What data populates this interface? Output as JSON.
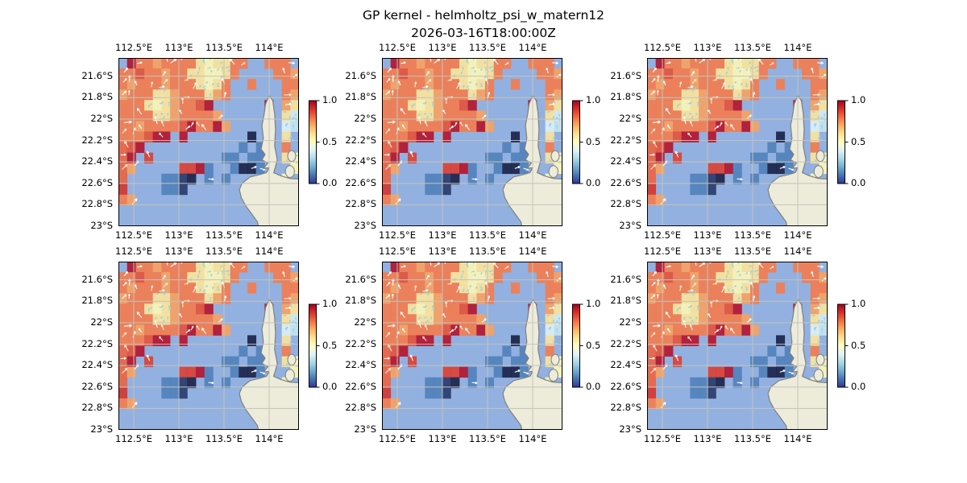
{
  "title": {
    "line1": "GP kernel - helmholtz_psi_w_matern12",
    "line2": "2026-03-16T18:00:00Z"
  },
  "chart_data": {
    "type": "heatmap",
    "title": "GP kernel - helmholtz_psi_w_matern12",
    "subtitle": "2026-03-16T18:00:00Z",
    "panels": {
      "rows": 2,
      "cols": 3,
      "identical": true
    },
    "lon_range": [
      112.33,
      114.33
    ],
    "lat_range": [
      21.43,
      23.0
    ],
    "lon_ticks": {
      "values": [
        112.5,
        113.0,
        113.5,
        114.0
      ],
      "labels": [
        "112.5°E",
        "113°E",
        "113.5°E",
        "114°E"
      ]
    },
    "lat_ticks": {
      "values": [
        21.6,
        21.8,
        22.0,
        22.2,
        22.4,
        22.6,
        22.8,
        23.0
      ],
      "labels": [
        "21.6°S",
        "21.8°S",
        "22°S",
        "22.2°S",
        "22.4°S",
        "22.6°S",
        "22.8°S",
        "23°S"
      ]
    },
    "colorbar": {
      "range": [
        0,
        1
      ],
      "tick_values": [
        1.0,
        0.5,
        0.0
      ],
      "tick_labels": [
        "1.0",
        "0.5",
        "0.0"
      ],
      "colormap": "RdYlBu_r",
      "stops": [
        [
          0.0,
          "#313695"
        ],
        [
          0.1,
          "#4575b4"
        ],
        [
          0.2,
          "#74add1"
        ],
        [
          0.3,
          "#abd9e9"
        ],
        [
          0.4,
          "#e0f3f8"
        ],
        [
          0.5,
          "#ffffbf"
        ],
        [
          0.6,
          "#fee090"
        ],
        [
          0.7,
          "#fdae61"
        ],
        [
          0.8,
          "#f46d43"
        ],
        [
          0.9,
          "#d73027"
        ],
        [
          1.0,
          "#a50026"
        ]
      ]
    },
    "grid": {
      "nx": 21,
      "ny": 16,
      "cell_alpha": 0.88,
      "values": [
        [
          null,
          0.97,
          0.78,
          0.78,
          0.72,
          0.78,
          0.78,
          0.78,
          0.78,
          0.58,
          0.52,
          0.58,
          0.58,
          0.78,
          0.78,
          null,
          null,
          0.78,
          0.78,
          0.78,
          null
        ],
        [
          0.78,
          0.78,
          0.85,
          0.78,
          0.78,
          0.72,
          0.78,
          0.78,
          0.58,
          0.58,
          0.52,
          0.52,
          0.58,
          0.78,
          null,
          null,
          null,
          null,
          0.78,
          0.78,
          0.72
        ],
        [
          0.78,
          0.72,
          0.78,
          0.78,
          0.78,
          0.72,
          0.78,
          0.78,
          0.78,
          0.58,
          0.52,
          0.58,
          0.78,
          null,
          null,
          0.78,
          null,
          null,
          null,
          0.78,
          0.78
        ],
        [
          0.72,
          0.78,
          0.78,
          0.78,
          0.58,
          0.58,
          0.72,
          0.78,
          0.78,
          0.78,
          0.58,
          0.72,
          0.78,
          null,
          null,
          null,
          null,
          null,
          null,
          0.78,
          0.72
        ],
        [
          0.78,
          0.78,
          0.78,
          0.58,
          0.52,
          0.58,
          0.72,
          0.78,
          0.78,
          0.85,
          0.97,
          null,
          null,
          null,
          null,
          null,
          null,
          0.97,
          null,
          0.72,
          0.58
        ],
        [
          0.78,
          0.78,
          0.78,
          0.78,
          0.58,
          0.58,
          0.72,
          0.78,
          0.78,
          0.78,
          0.78,
          0.72,
          null,
          null,
          null,
          null,
          null,
          0.97,
          null,
          0.58,
          0.38
        ],
        [
          0.78,
          0.78,
          0.72,
          0.78,
          0.78,
          0.78,
          0.78,
          0.85,
          0.97,
          0.78,
          0.78,
          0.97,
          0.72,
          null,
          null,
          null,
          null,
          null,
          null,
          0.4,
          0.35
        ],
        [
          0.78,
          0.78,
          0.78,
          0.85,
          0.97,
          0.97,
          null,
          0.97,
          null,
          null,
          null,
          null,
          null,
          null,
          null,
          0.02,
          null,
          null,
          null,
          0.58,
          null
        ],
        [
          0.82,
          0.85,
          0.97,
          null,
          null,
          null,
          null,
          null,
          null,
          null,
          null,
          null,
          null,
          null,
          0.12,
          null,
          0.12,
          null,
          null,
          0.78,
          null
        ],
        [
          0.82,
          0.97,
          null,
          0.88,
          null,
          null,
          null,
          null,
          null,
          null,
          null,
          null,
          0.12,
          0.12,
          null,
          0.12,
          0.12,
          null,
          null,
          0.58,
          0.52
        ],
        [
          0.82,
          0.72,
          null,
          null,
          null,
          null,
          null,
          0.88,
          0.88,
          0.97,
          0.12,
          null,
          null,
          0.12,
          0.02,
          0.02,
          0.12,
          null,
          null,
          null,
          0.52
        ],
        [
          0.82,
          null,
          null,
          null,
          null,
          0.12,
          0.12,
          0.05,
          0.02,
          null,
          0.12,
          null,
          0.12,
          null,
          null,
          null,
          null,
          null,
          null,
          0.52,
          null
        ],
        [
          0.9,
          null,
          null,
          null,
          null,
          0.12,
          0.12,
          0.05,
          null,
          null,
          null,
          null,
          null,
          null,
          null,
          null,
          null,
          null,
          null,
          null,
          null
        ],
        [
          0.78,
          0.72,
          null,
          null,
          null,
          null,
          null,
          null,
          null,
          null,
          null,
          null,
          null,
          null,
          null,
          null,
          null,
          null,
          null,
          null,
          null
        ],
        [
          null,
          null,
          null,
          null,
          null,
          null,
          null,
          null,
          null,
          null,
          null,
          null,
          null,
          null,
          null,
          null,
          null,
          null,
          null,
          null,
          null
        ],
        [
          null,
          null,
          null,
          null,
          null,
          null,
          null,
          null,
          null,
          null,
          null,
          null,
          null,
          null,
          null,
          null,
          null,
          null,
          null,
          null,
          null
        ]
      ]
    },
    "land": {
      "fill": "#edecdb",
      "coastline": "#7f7f7f",
      "polygon": [
        [
          114.0,
          21.78
        ],
        [
          114.04,
          21.83
        ],
        [
          114.06,
          21.95
        ],
        [
          114.07,
          22.1
        ],
        [
          114.06,
          22.25
        ],
        [
          114.09,
          22.38
        ],
        [
          114.065,
          22.46
        ],
        [
          114.05,
          22.5
        ],
        [
          114.13,
          22.53
        ],
        [
          114.23,
          22.555
        ],
        [
          114.33,
          22.56
        ],
        [
          114.33,
          23.0
        ],
        [
          113.88,
          23.0
        ],
        [
          113.87,
          22.96
        ],
        [
          113.81,
          22.89
        ],
        [
          113.74,
          22.81
        ],
        [
          113.69,
          22.73
        ],
        [
          113.67,
          22.66
        ],
        [
          113.7,
          22.6
        ],
        [
          113.79,
          22.54
        ],
        [
          113.89,
          22.52
        ],
        [
          113.97,
          22.5
        ],
        [
          114.0,
          22.455
        ],
        [
          113.94,
          22.46
        ],
        [
          113.985,
          22.41
        ],
        [
          113.92,
          22.38
        ],
        [
          113.955,
          22.33
        ],
        [
          113.91,
          22.28
        ],
        [
          113.935,
          22.18
        ],
        [
          113.92,
          22.06
        ],
        [
          113.945,
          21.95
        ],
        [
          113.96,
          21.86
        ]
      ],
      "islands": [
        {
          "lon": 114.25,
          "lat": 22.345,
          "rlon": 0.045,
          "rlat": 0.05
        },
        {
          "lon": 114.23,
          "lat": 22.49,
          "rlon": 0.05,
          "rlat": 0.055
        }
      ]
    },
    "ocean_color": "#92b1e0",
    "gridline_color": "#c6c3ba",
    "border_color": "#000000",
    "quiver": {
      "seed": 42,
      "color_small": "#9fd0d8",
      "color_large": "#ffffff",
      "color_alt": "#f3ead2"
    }
  }
}
